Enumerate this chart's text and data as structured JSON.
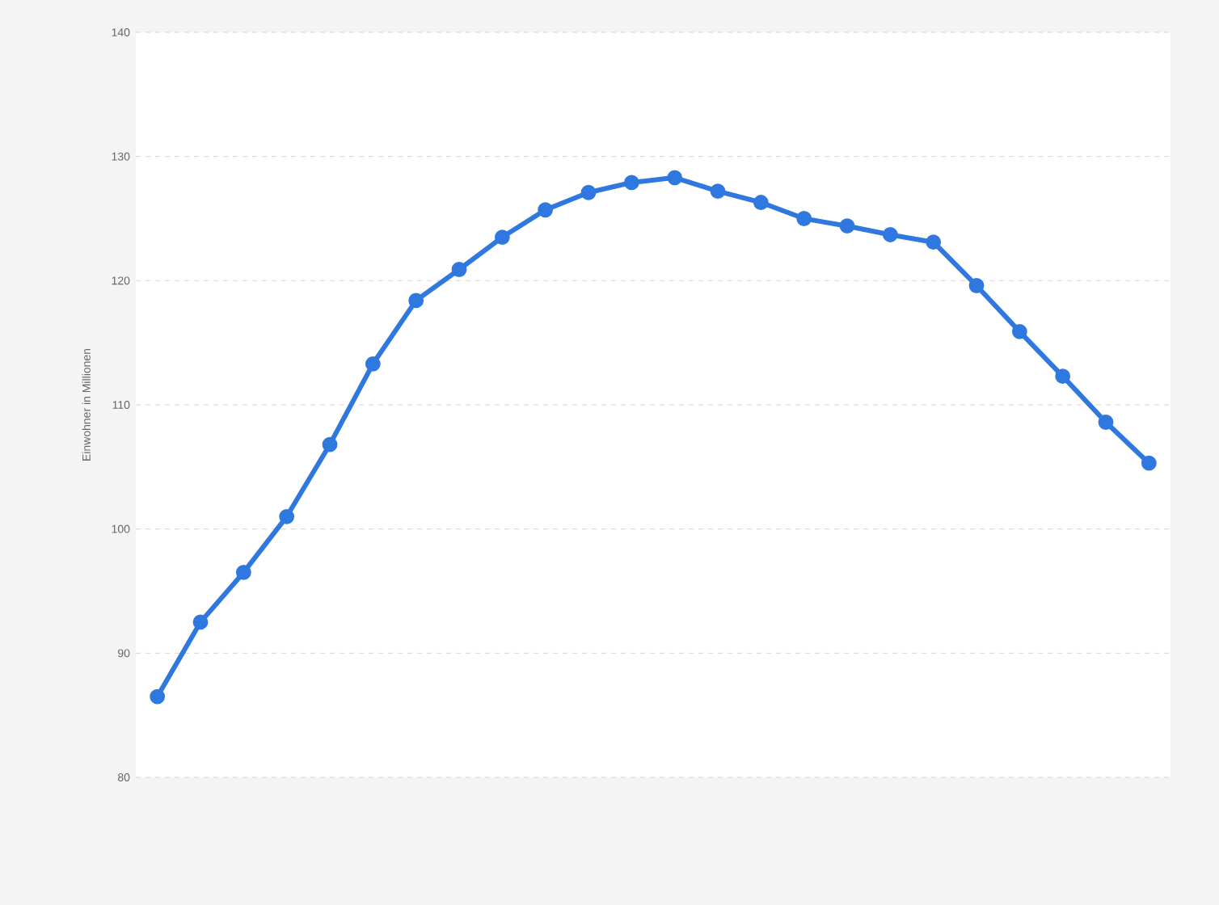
{
  "chart_data": {
    "type": "line",
    "ylabel": "Einwohner in Millionen",
    "categories": [
      null,
      null,
      null,
      null,
      null,
      null,
      null,
      null,
      null,
      null,
      null,
      null,
      null,
      null,
      null,
      null,
      null,
      null,
      null,
      null,
      null,
      null,
      null,
      null
    ],
    "series": [
      {
        "color": "#2f78e0",
        "values": [
          86.5,
          92.5,
          96.5,
          101.0,
          106.8,
          113.3,
          118.4,
          120.9,
          123.5,
          125.7,
          127.1,
          127.9,
          128.3,
          127.2,
          126.3,
          125.0,
          124.4,
          123.7,
          123.1,
          119.6,
          115.9,
          112.3,
          108.6,
          105.3
        ]
      }
    ],
    "ylim": [
      80,
      140
    ],
    "yticks": [
      80,
      90,
      100,
      110,
      120,
      130,
      140
    ],
    "grid": "y",
    "marker": "circle",
    "line_style": "solid"
  }
}
